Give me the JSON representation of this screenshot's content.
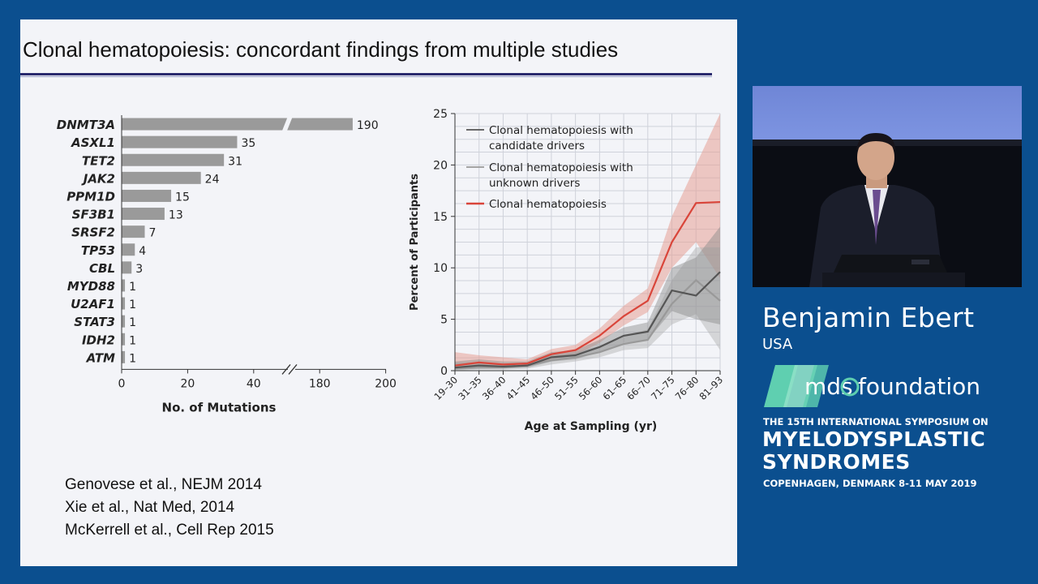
{
  "slide": {
    "title": "Clonal hematopoiesis: concordant findings from multiple studies",
    "references": [
      "Genovese et al., NEJM 2014",
      "Xie et al., Nat Med, 2014",
      "McKerrell et al., Cell Rep 2015"
    ]
  },
  "speaker": {
    "name": "Benjamin Ebert",
    "country": "USA"
  },
  "event": {
    "logo_text_left": "mds",
    "logo_text_right": "foundation",
    "line1": "THE 15TH INTERNATIONAL SYMPOSIUM ON",
    "line2": "MYELODYSPLASTIC",
    "line3": "SYNDROMES",
    "line4": "COPENHAGEN, DENMARK   8-11 MAY 2019"
  },
  "colors": {
    "background": "#0b4f8f",
    "bar": "#9a9a9a",
    "red_series": "#d9453a",
    "dark_series": "#555555",
    "gray_series": "#999999"
  },
  "chart_data": [
    {
      "type": "bar",
      "orientation": "horizontal",
      "categories": [
        "DNMT3A",
        "ASXL1",
        "TET2",
        "JAK2",
        "PPM1D",
        "SF3B1",
        "SRSF2",
        "TP53",
        "CBL",
        "MYD88",
        "U2AF1",
        "STAT3",
        "IDH2",
        "ATM"
      ],
      "values": [
        190,
        35,
        31,
        24,
        15,
        13,
        7,
        4,
        3,
        1,
        1,
        1,
        1,
        1
      ],
      "xlabel": "No. of Mutations",
      "x_ticks": [
        "0",
        "20",
        "40",
        "180",
        "200"
      ],
      "axis_break": [
        50,
        170
      ]
    },
    {
      "type": "line",
      "x": [
        "19–30",
        "31–35",
        "36–40",
        "41–45",
        "46–50",
        "51–55",
        "56–60",
        "61–65",
        "66–70",
        "71–75",
        "76–80",
        "81–93"
      ],
      "xlabel": "Age at Sampling (yr)",
      "ylabel": "Percent of Participants",
      "ylim": [
        0,
        25
      ],
      "y_ticks": [
        "0",
        "5",
        "10",
        "15",
        "20",
        "25"
      ],
      "legend_position": "top-left",
      "series": [
        {
          "name": "Clonal hematopoiesis with candidate drivers",
          "color": "#555555",
          "values": [
            0.3,
            0.5,
            0.4,
            0.5,
            1.3,
            1.5,
            2.3,
            3.4,
            3.8,
            7.8,
            7.3,
            9.6
          ],
          "lower": [
            0.1,
            0.2,
            0.2,
            0.3,
            0.9,
            1.1,
            1.8,
            2.7,
            3.0,
            5.8,
            5.0,
            4.5
          ],
          "upper": [
            0.9,
            1.1,
            0.9,
            0.9,
            1.8,
            2.0,
            3.0,
            4.2,
            4.7,
            10.0,
            11.0,
            14.0
          ]
        },
        {
          "name": "Clonal hematopoiesis with unknown drivers",
          "color": "#999999",
          "values": [
            0.2,
            0.3,
            0.3,
            0.5,
            1.0,
            1.3,
            1.8,
            2.6,
            3.0,
            6.5,
            8.8,
            6.8
          ],
          "lower": [
            0.0,
            0.1,
            0.1,
            0.2,
            0.6,
            0.9,
            1.3,
            2.0,
            2.2,
            4.5,
            5.5,
            2.0
          ],
          "upper": [
            0.8,
            0.8,
            0.7,
            0.8,
            1.5,
            1.8,
            2.4,
            3.4,
            4.0,
            8.8,
            12.0,
            12.0
          ]
        },
        {
          "name": "Clonal hematopoiesis",
          "color": "#d9453a",
          "values": [
            0.5,
            0.8,
            0.6,
            0.7,
            1.6,
            2.0,
            3.4,
            5.3,
            6.8,
            12.5,
            16.3,
            16.4
          ],
          "lower": [
            0.2,
            0.3,
            0.3,
            0.4,
            1.1,
            1.5,
            2.7,
            4.4,
            5.7,
            10.0,
            12.5,
            9.0
          ],
          "upper": [
            1.8,
            1.5,
            1.3,
            1.1,
            2.1,
            2.5,
            4.1,
            6.3,
            8.0,
            15.0,
            20.0,
            25.0
          ]
        }
      ]
    }
  ]
}
